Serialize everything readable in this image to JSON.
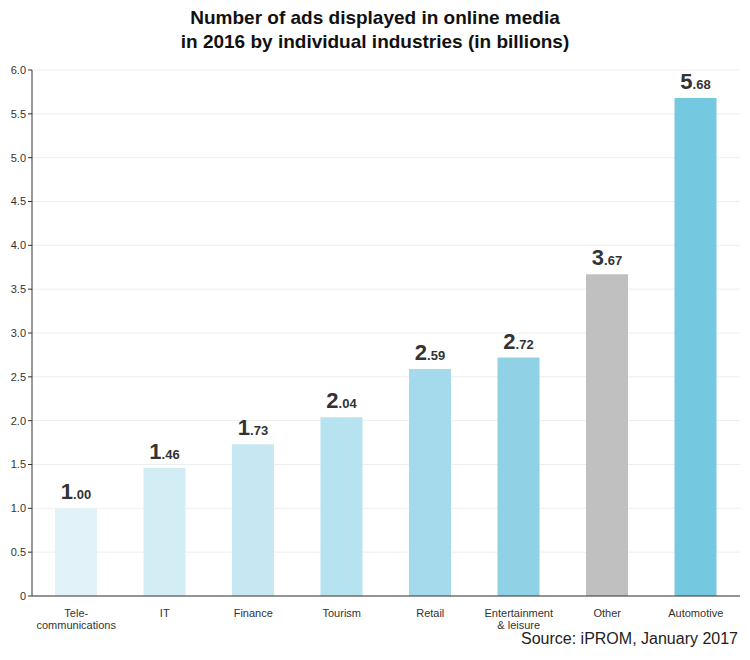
{
  "chart_data": {
    "type": "bar",
    "title": "Number of ads displayed in online media\nin 2016 by individual industries (in billions)",
    "categories": [
      "Tele-\ncommunications",
      "IT",
      "Finance",
      "Tourism",
      "Retail",
      "Entertainment\n& leisure",
      "Other",
      "Automotive"
    ],
    "values": [
      1.0,
      1.46,
      1.73,
      2.04,
      2.59,
      2.72,
      3.67,
      5.68
    ],
    "value_labels": [
      "1.00",
      "1.46",
      "1.73",
      "2.04",
      "2.59",
      "2.72",
      "3.67",
      "5.68"
    ],
    "colors": [
      "#e1f3f9",
      "#d3edf5",
      "#c7e8f2",
      "#b7e2ef",
      "#a4daeb",
      "#90d1e6",
      "#c0c0c0",
      "#74c8e0"
    ],
    "ylim": [
      0,
      6
    ],
    "yticks": [
      0,
      0.5,
      {
        "value": 1,
        "label": "1.0"
      },
      1.5,
      {
        "value": 2,
        "label": "2.0"
      },
      2.5,
      {
        "value": 3,
        "label": "3.0"
      },
      3.5,
      {
        "value": 4,
        "label": "4.0"
      },
      4.5,
      {
        "value": 5,
        "label": "5.0"
      },
      5.5,
      {
        "value": 6,
        "label": "6.0"
      }
    ],
    "grid": true,
    "data_labels": true,
    "annotations": [
      "Source: iPROM, January 2017"
    ]
  }
}
